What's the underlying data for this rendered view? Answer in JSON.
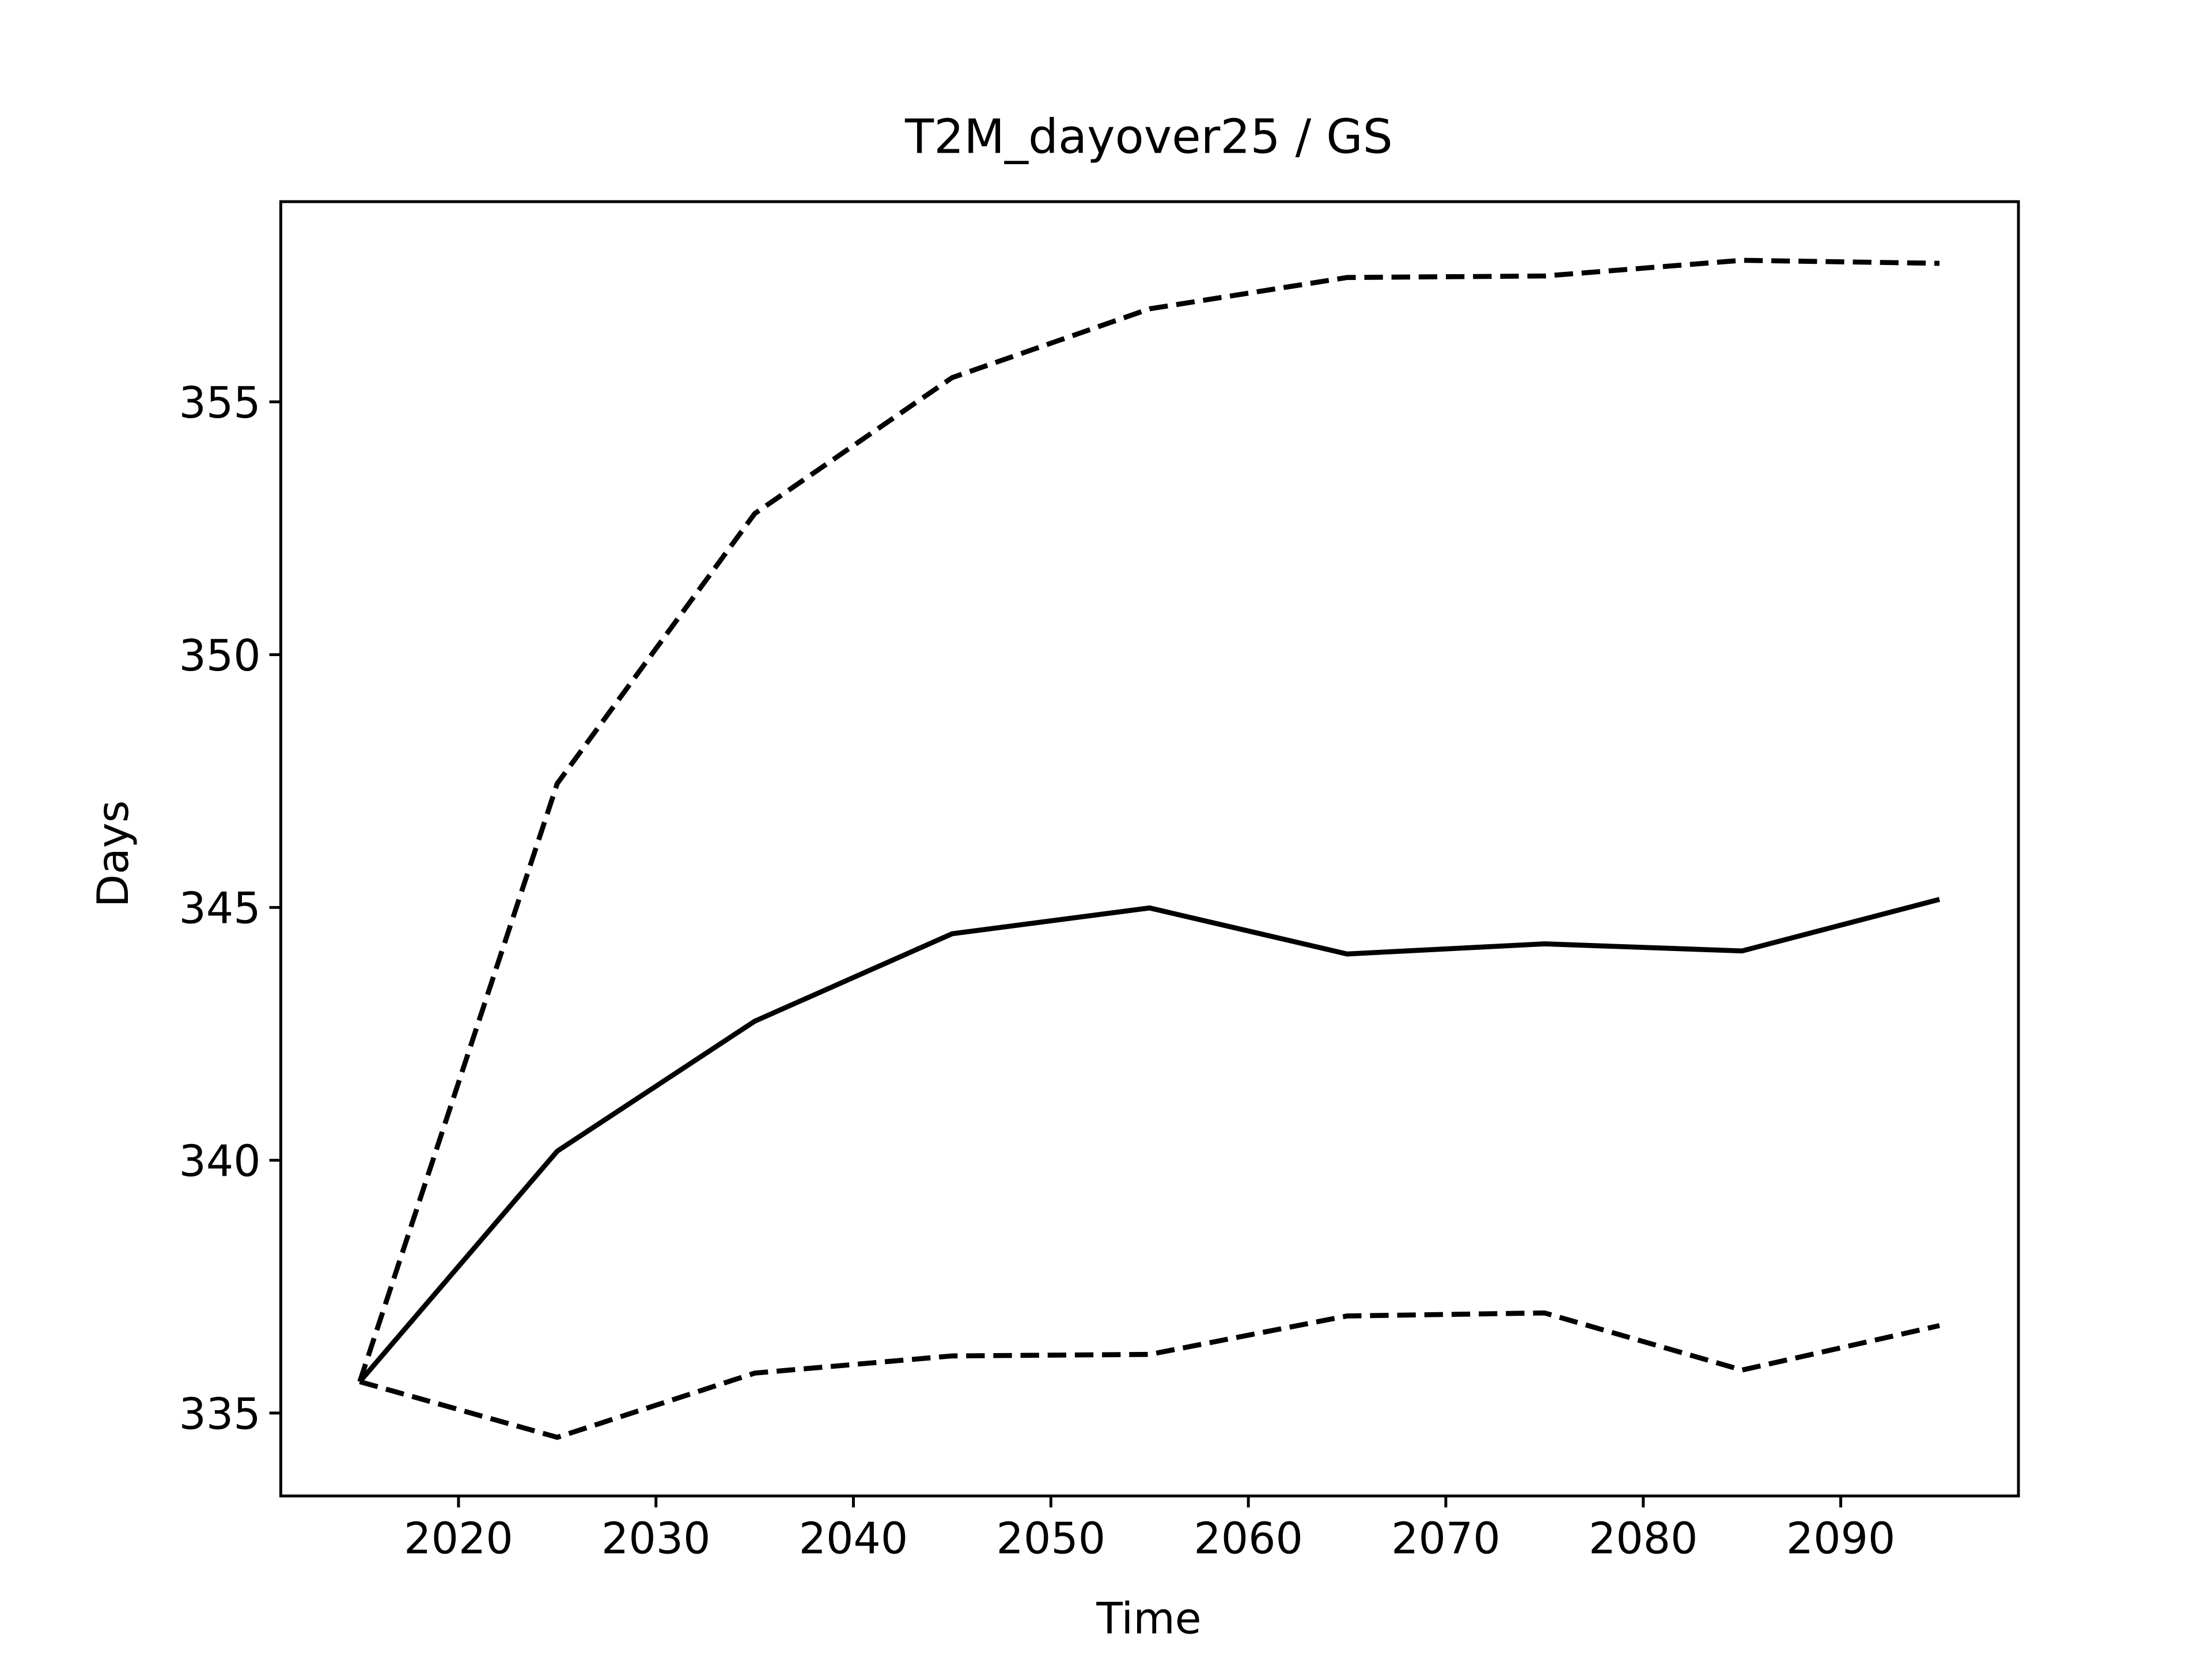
{
  "chart_data": {
    "type": "line",
    "title": "T2M_dayover25 / GS",
    "x_label": "Time",
    "y_label": "Days",
    "x": [
      2015,
      2025,
      2035,
      2045,
      2055,
      2065,
      2075,
      2085,
      2095
    ],
    "series": [
      {
        "color": "#000000",
        "linestyle": "dashed",
        "values": [
          335.62,
          347.45,
          352.79,
          355.48,
          356.84,
          357.46,
          357.49,
          357.8,
          357.74
        ]
      },
      {
        "color": "#000000",
        "linestyle": "solid",
        "values": [
          335.62,
          340.18,
          342.75,
          344.48,
          344.99,
          344.08,
          344.28,
          344.14,
          345.16
        ]
      },
      {
        "color": "#000000",
        "linestyle": "dashed",
        "values": [
          335.62,
          334.52,
          335.79,
          336.13,
          336.16,
          336.92,
          336.98,
          335.85,
          336.73
        ]
      }
    ],
    "xlim": [
      2011,
      2099
    ],
    "xticks": [
      2020,
      2030,
      2040,
      2050,
      2060,
      2070,
      2080,
      2090
    ],
    "ylim": [
      333.36,
      358.96
    ],
    "yticks": [
      335,
      340,
      345,
      350,
      355
    ],
    "grid": false
  }
}
